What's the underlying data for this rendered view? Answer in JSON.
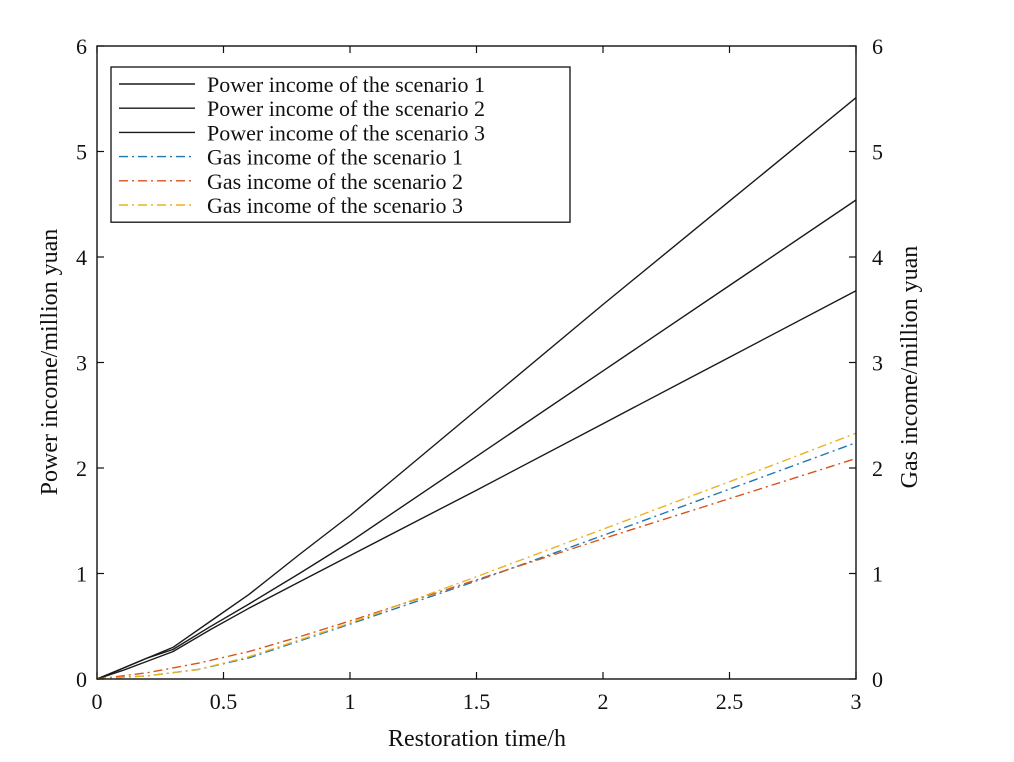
{
  "chart_data": {
    "type": "line",
    "xlabel": "Restoration time/h",
    "ylabel_left": "Power income/million yuan",
    "ylabel_right": "Gas income/million yuan",
    "xlim": [
      0,
      3
    ],
    "ylim": [
      0,
      6
    ],
    "y2lim": [
      0,
      6
    ],
    "xticks": [
      "0",
      "0.5",
      "1",
      "1.5",
      "2",
      "2.5",
      "3"
    ],
    "yticks": [
      "0",
      "1",
      "2",
      "3",
      "4",
      "5",
      "6"
    ],
    "y2ticks": [
      "0",
      "1",
      "2",
      "3",
      "4",
      "5",
      "6"
    ],
    "grid": false,
    "legend_position": "top-left",
    "series": [
      {
        "name": "Power income of the scenario 1",
        "axis": "left",
        "color": "#1a1a1a",
        "style": "solid",
        "x": [
          0,
          0.1,
          0.2,
          0.3,
          0.45,
          0.6,
          0.8,
          1.0,
          1.5,
          2.0,
          2.5,
          3.0
        ],
        "y": [
          0,
          0.1,
          0.2,
          0.3,
          0.55,
          0.8,
          1.18,
          1.55,
          2.55,
          3.55,
          4.53,
          5.51
        ]
      },
      {
        "name": "Power income of the scenario 2",
        "axis": "left",
        "color": "#1a1a1a",
        "style": "solid",
        "x": [
          0,
          0.1,
          0.2,
          0.3,
          0.45,
          0.6,
          0.8,
          1.0,
          1.5,
          2.0,
          2.5,
          3.0
        ],
        "y": [
          0,
          0.1,
          0.2,
          0.28,
          0.5,
          0.71,
          1.0,
          1.3,
          2.11,
          2.92,
          3.73,
          4.54
        ]
      },
      {
        "name": "Power income of the scenario 3",
        "axis": "left",
        "color": "#1a1a1a",
        "style": "solid",
        "x": [
          0,
          0.1,
          0.2,
          0.3,
          0.45,
          0.6,
          0.8,
          1.0,
          1.5,
          2.0,
          2.5,
          3.0
        ],
        "y": [
          0,
          0.08,
          0.17,
          0.26,
          0.47,
          0.67,
          0.92,
          1.17,
          1.79,
          2.42,
          3.05,
          3.68
        ]
      },
      {
        "name": "Gas income of the scenario 1",
        "axis": "right",
        "color": "#1f77b4",
        "style": "dashdot",
        "x": [
          0,
          0.2,
          0.4,
          0.6,
          0.8,
          1.0,
          1.5,
          2.0,
          2.5,
          3.0
        ],
        "y": [
          0,
          0.03,
          0.09,
          0.2,
          0.36,
          0.52,
          0.93,
          1.36,
          1.8,
          2.24
        ]
      },
      {
        "name": "Gas income of the scenario 2",
        "axis": "right",
        "color": "#d95319",
        "style": "dashdot",
        "x": [
          0,
          0.2,
          0.4,
          0.6,
          0.8,
          1.0,
          1.5,
          2.0,
          2.5,
          3.0
        ],
        "y": [
          0,
          0.06,
          0.15,
          0.26,
          0.4,
          0.55,
          0.94,
          1.33,
          1.71,
          2.09
        ]
      },
      {
        "name": "Gas income of the scenario 3",
        "axis": "right",
        "color": "#edb120",
        "style": "dashdot",
        "x": [
          0,
          0.2,
          0.4,
          0.6,
          0.8,
          1.0,
          1.5,
          2.0,
          2.5,
          3.0
        ],
        "y": [
          0,
          0.03,
          0.09,
          0.21,
          0.37,
          0.53,
          0.97,
          1.42,
          1.87,
          2.33
        ]
      }
    ]
  }
}
